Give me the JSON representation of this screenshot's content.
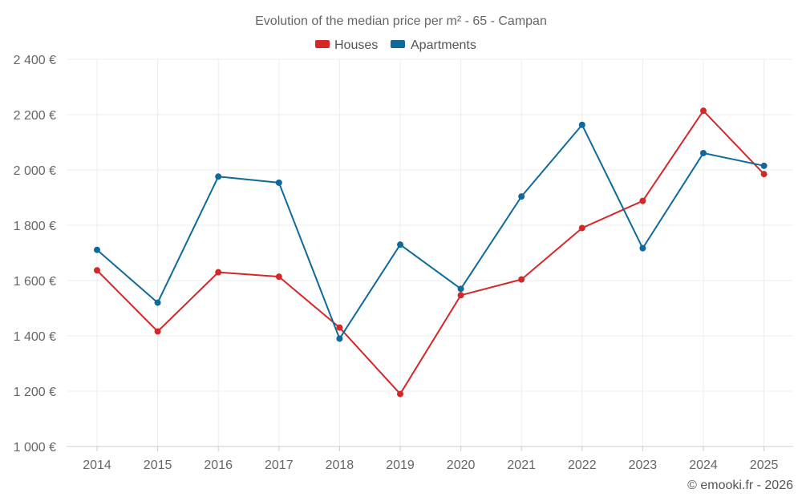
{
  "chart_data": {
    "type": "line",
    "title": "Evolution of the median price per m² - 65 - Campan",
    "categories": [
      "2014",
      "2015",
      "2016",
      "2017",
      "2018",
      "2019",
      "2020",
      "2021",
      "2022",
      "2023",
      "2024",
      "2025"
    ],
    "series": [
      {
        "name": "Houses",
        "color": "#d62728",
        "values": [
          1637,
          1416,
          1630,
          1614,
          1430,
          1190,
          1547,
          1604,
          1790,
          1888,
          2214,
          1985
        ]
      },
      {
        "name": "Apartments",
        "color": "#0e6a9a",
        "values": [
          1711,
          1520,
          1976,
          1954,
          1390,
          1730,
          1570,
          1904,
          2163,
          1717,
          2061,
          2015
        ]
      }
    ],
    "ylim": [
      1000,
      2400
    ],
    "yticks": [
      1000,
      1200,
      1400,
      1600,
      1800,
      2000,
      2200,
      2400
    ],
    "ytick_labels": [
      "1 000 €",
      "1 200 €",
      "1 400 €",
      "1 600 €",
      "1 800 €",
      "2 000 €",
      "2 200 €",
      "2 400 €"
    ],
    "xlabel": "",
    "ylabel": "",
    "grid": true,
    "legend_position": "top-center"
  },
  "footer": {
    "credit": "© emooki.fr - 2026"
  }
}
